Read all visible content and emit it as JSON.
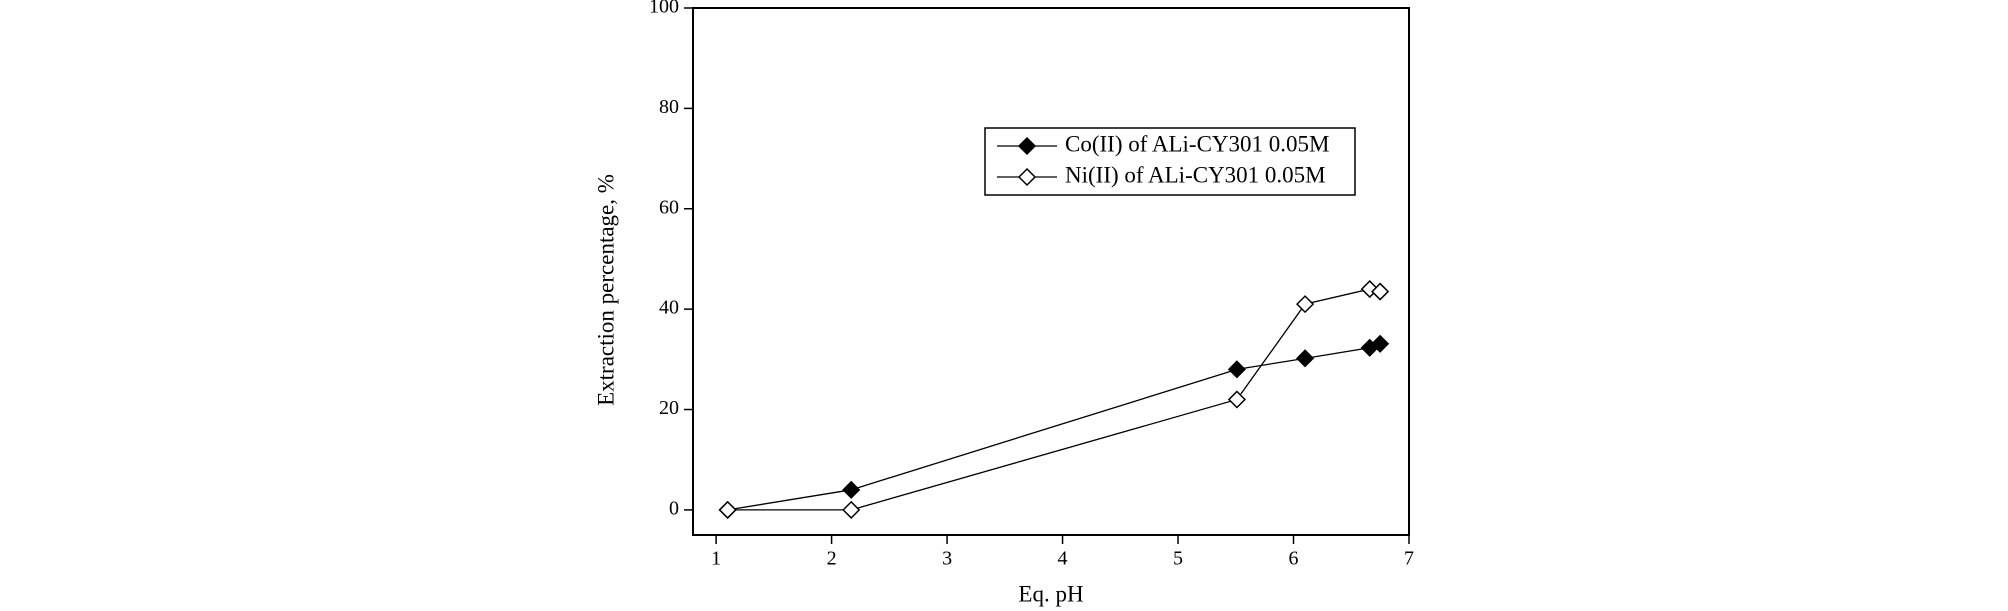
{
  "chart_data": {
    "type": "line",
    "xlabel": "Eq. pH",
    "ylabel": "Extraction percentage, %",
    "xlim": [
      0.8,
      7
    ],
    "ylim": [
      -5,
      100
    ],
    "xticks": [
      1,
      2,
      3,
      4,
      5,
      6,
      7
    ],
    "yticks": [
      0,
      20,
      40,
      60,
      80,
      100
    ],
    "legend": "upper right",
    "series": [
      {
        "name": "Co(II) of ALi-CY301 0.05M",
        "color": "#000000",
        "marker": "filled-diamond",
        "x": [
          1.1,
          2.17,
          5.51,
          6.1,
          6.66,
          6.75
        ],
        "values": [
          0,
          4,
          28,
          30.2,
          32.3,
          33.1
        ]
      },
      {
        "name": "Ni(II) of ALi-CY301 0.05M",
        "color": "#000000",
        "marker": "open-diamond",
        "x": [
          1.1,
          2.17,
          5.51,
          6.1,
          6.66,
          6.75
        ],
        "values": [
          0,
          0,
          22,
          41,
          44,
          43.5
        ]
      }
    ]
  }
}
